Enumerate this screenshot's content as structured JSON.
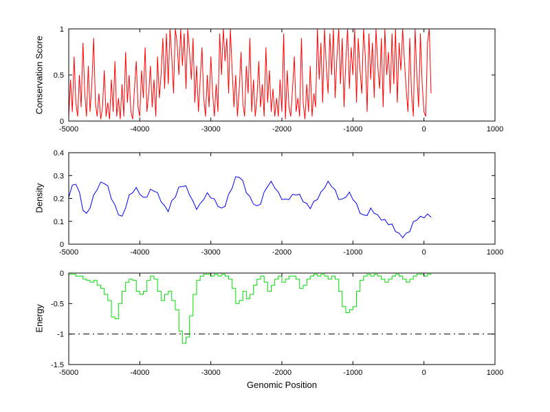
{
  "figure": {
    "background": "#ffffff",
    "xlabel": "Genomic Position",
    "xlim": [
      -5000,
      1000
    ],
    "x_ticks": [
      "-5000",
      "-4000",
      "-3000",
      "-2000",
      "-1000",
      "0",
      "1000"
    ]
  },
  "chart_data": [
    {
      "type": "line",
      "name": "conservation-score",
      "ylabel": "Conservation Score",
      "ylim": [
        0,
        1
      ],
      "yticks": [
        0,
        0.5,
        1
      ],
      "ytick_labels": [
        "0",
        "0.5",
        "1"
      ],
      "color": "#ff0000",
      "step": false,
      "x_start": -5000,
      "x_step": 25,
      "values": [
        0.05,
        0.45,
        0.1,
        0.7,
        0.2,
        0.05,
        0.5,
        0.15,
        0.85,
        0.3,
        0.05,
        0.6,
        0.1,
        0.4,
        0.9,
        0.2,
        0.05,
        0.3,
        0.02,
        0.15,
        0.55,
        0.05,
        0.2,
        0.02,
        0.45,
        0.1,
        0.65,
        0.05,
        0.25,
        0.02,
        0.4,
        0.05,
        0.75,
        0.2,
        0.5,
        0.1,
        0.02,
        0.35,
        0.65,
        0.15,
        0.05,
        0.55,
        0.25,
        0.8,
        0.1,
        0.3,
        0.6,
        0.15,
        0.45,
        0.05,
        0.7,
        0.25,
        0.5,
        0.9,
        0.35,
        0.95,
        0.4,
        1.0,
        0.7,
        0.3,
        1.0,
        0.85,
        0.5,
        1.0,
        0.6,
        0.95,
        0.35,
        1.0,
        0.75,
        0.45,
        0.9,
        0.2,
        0.6,
        0.1,
        0.45,
        0.8,
        0.25,
        0.05,
        0.5,
        0.15,
        0.7,
        0.3,
        0.05,
        0.4,
        0.1,
        0.95,
        0.5,
        1.0,
        0.65,
        0.9,
        0.3,
        1.0,
        0.55,
        0.15,
        0.5,
        0.05,
        0.35,
        0.75,
        0.2,
        0.05,
        0.6,
        0.3,
        0.9,
        0.1,
        0.45,
        0.05,
        0.25,
        0.65,
        0.15,
        0.4,
        0.05,
        0.8,
        0.2,
        0.55,
        0.1,
        0.35,
        0.05,
        0.25,
        0.05,
        0.45,
        0.1,
        0.95,
        0.02,
        0.55,
        0.15,
        0.05,
        0.35,
        0.7,
        0.1,
        0.25,
        0.05,
        0.9,
        0.2,
        0.02,
        0.4,
        0.1,
        0.6,
        0.05,
        0.3,
        0.15,
        1.0,
        0.45,
        0.85,
        0.2,
        1.0,
        0.6,
        0.3,
        0.95,
        0.5,
        1.0,
        0.25,
        0.7,
        1.0,
        0.4,
        0.9,
        0.15,
        0.65,
        1.0,
        0.35,
        0.8,
        0.5,
        1.0,
        0.2,
        0.9,
        0.55,
        0.3,
        1.0,
        0.7,
        0.1,
        0.95,
        0.45,
        0.85,
        0.25,
        1.0,
        0.6,
        0.35,
        0.9,
        0.15,
        1.0,
        0.5,
        0.75,
        0.3,
        0.95,
        0.4,
        1.0,
        0.2,
        0.85,
        0.55,
        1.0,
        0.65,
        0.35,
        0.1,
        0.9,
        0.3,
        0.05,
        1.0,
        0.5,
        0.15,
        0.95,
        0.4,
        0.1,
        0.05,
        0.85,
        1.0,
        0.3
      ]
    },
    {
      "type": "line",
      "name": "density",
      "ylabel": "Density",
      "ylim": [
        0,
        0.4
      ],
      "yticks": [
        0,
        0.1,
        0.2,
        0.3,
        0.4
      ],
      "ytick_labels": [
        "0",
        "0.1",
        "0.2",
        "0.3",
        "0.4"
      ],
      "color": "#0000ff",
      "step": false,
      "x_start": -5000,
      "x_step": 50,
      "values": [
        0.205,
        0.258,
        0.262,
        0.228,
        0.148,
        0.135,
        0.158,
        0.215,
        0.238,
        0.272,
        0.265,
        0.255,
        0.198,
        0.172,
        0.128,
        0.122,
        0.158,
        0.215,
        0.225,
        0.248,
        0.218,
        0.205,
        0.205,
        0.24,
        0.232,
        0.225,
        0.185,
        0.168,
        0.142,
        0.19,
        0.205,
        0.25,
        0.252,
        0.255,
        0.215,
        0.188,
        0.152,
        0.178,
        0.195,
        0.225,
        0.202,
        0.198,
        0.165,
        0.158,
        0.165,
        0.218,
        0.245,
        0.295,
        0.292,
        0.278,
        0.225,
        0.208,
        0.175,
        0.168,
        0.175,
        0.228,
        0.252,
        0.275,
        0.245,
        0.228,
        0.195,
        0.198,
        0.195,
        0.218,
        0.215,
        0.218,
        0.185,
        0.178,
        0.155,
        0.188,
        0.195,
        0.228,
        0.245,
        0.275,
        0.252,
        0.238,
        0.195,
        0.198,
        0.205,
        0.228,
        0.195,
        0.178,
        0.135,
        0.128,
        0.125,
        0.158,
        0.135,
        0.128,
        0.105,
        0.108,
        0.085,
        0.088,
        0.055,
        0.048,
        0.028,
        0.048,
        0.055,
        0.098,
        0.105,
        0.122,
        0.115,
        0.132,
        0.118
      ]
    },
    {
      "type": "line",
      "name": "energy",
      "ylabel": "Energy",
      "ylim": [
        -1.5,
        0
      ],
      "yticks": [
        -1.5,
        -1,
        -0.5,
        0
      ],
      "ytick_labels": [
        "-1.5",
        "-1",
        "-0.5",
        "0"
      ],
      "color": "#00dd00",
      "step": true,
      "x_start": -5000,
      "x_step": 50,
      "reference_line": {
        "y": -1,
        "style": "dash-dot",
        "color": "#000000"
      },
      "values": [
        -0.02,
        -0.02,
        -0.05,
        -0.05,
        -0.1,
        -0.12,
        -0.15,
        -0.12,
        -0.2,
        -0.25,
        -0.35,
        -0.45,
        -0.72,
        -0.75,
        -0.5,
        -0.3,
        -0.15,
        -0.1,
        -0.12,
        -0.3,
        -0.35,
        -0.3,
        -0.12,
        -0.05,
        -0.1,
        -0.3,
        -0.45,
        -0.35,
        -0.3,
        -0.45,
        -0.6,
        -0.95,
        -1.15,
        -1.05,
        -0.7,
        -0.35,
        -0.12,
        -0.05,
        -0.02,
        -0.02,
        -0.05,
        -0.02,
        -0.05,
        -0.02,
        -0.05,
        -0.1,
        -0.25,
        -0.5,
        -0.45,
        -0.3,
        -0.42,
        -0.35,
        -0.2,
        -0.1,
        -0.05,
        -0.15,
        -0.3,
        -0.2,
        -0.1,
        -0.05,
        -0.15,
        -0.1,
        -0.05,
        -0.05,
        -0.1,
        -0.25,
        -0.2,
        -0.1,
        -0.05,
        -0.02,
        -0.05,
        -0.02,
        -0.05,
        -0.1,
        -0.05,
        -0.1,
        -0.3,
        -0.55,
        -0.65,
        -0.6,
        -0.55,
        -0.3,
        -0.12,
        -0.05,
        -0.02,
        -0.05,
        -0.02,
        -0.05,
        -0.1,
        -0.15,
        -0.1,
        -0.05,
        -0.02,
        -0.05,
        -0.1,
        -0.15,
        -0.1,
        -0.05,
        -0.02,
        -0.02,
        -0.05,
        -0.02,
        -0.01
      ]
    }
  ]
}
